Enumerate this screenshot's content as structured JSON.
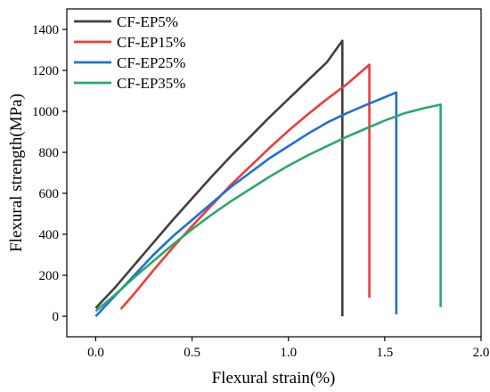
{
  "chart_data": {
    "type": "line",
    "xlabel": "Flexural strain(%)",
    "ylabel": "Flexural strength(MPa)",
    "xlim": [
      -0.15,
      2.0
    ],
    "ylim": [
      -100,
      1500
    ],
    "x_ticks": [
      0.0,
      0.5,
      1.0,
      1.5,
      2.0
    ],
    "x_tick_labels": [
      "0.0",
      "0.5",
      "1.0",
      "1.5",
      "2.0"
    ],
    "y_ticks": [
      0,
      200,
      400,
      600,
      800,
      1000,
      1200,
      1400
    ],
    "y_tick_labels": [
      "0",
      "200",
      "400",
      "600",
      "800",
      "1000",
      "1200",
      "1400"
    ],
    "grid": false,
    "legend_position": "top-left",
    "series": [
      {
        "name": "CF-EP5%",
        "color": "#404040",
        "x": [
          0.0,
          0.1,
          0.2,
          0.3,
          0.4,
          0.5,
          0.6,
          0.7,
          0.8,
          0.9,
          1.0,
          1.1,
          1.2,
          1.28,
          1.28,
          1.28
        ],
        "y": [
          40,
          140,
          250,
          360,
          470,
          575,
          680,
          780,
          875,
          970,
          1060,
          1150,
          1240,
          1345,
          800,
          0
        ]
      },
      {
        "name": "CF-EP15%",
        "color": "#ef3b3b",
        "x": [
          0.13,
          0.2,
          0.3,
          0.4,
          0.5,
          0.6,
          0.7,
          0.8,
          0.9,
          1.0,
          1.1,
          1.2,
          1.3,
          1.42,
          1.42,
          1.42
        ],
        "y": [
          35,
          110,
          225,
          335,
          440,
          540,
          640,
          730,
          820,
          905,
          985,
          1060,
          1130,
          1228,
          340,
          90
        ]
      },
      {
        "name": "CF-EP25%",
        "color": "#1f6fd8",
        "x": [
          0.0,
          0.1,
          0.2,
          0.3,
          0.4,
          0.5,
          0.6,
          0.7,
          0.8,
          0.9,
          1.0,
          1.1,
          1.2,
          1.3,
          1.4,
          1.56,
          1.56
        ],
        "y": [
          0,
          100,
          200,
          300,
          390,
          470,
          550,
          630,
          700,
          770,
          830,
          890,
          945,
          990,
          1030,
          1092,
          10
        ]
      },
      {
        "name": "CF-EP35%",
        "color": "#2aa86a",
        "x": [
          0.0,
          0.1,
          0.2,
          0.3,
          0.4,
          0.5,
          0.6,
          0.7,
          0.8,
          0.9,
          1.0,
          1.1,
          1.2,
          1.3,
          1.4,
          1.5,
          1.6,
          1.7,
          1.79,
          1.79
        ],
        "y": [
          25,
          105,
          190,
          270,
          350,
          425,
          495,
          560,
          620,
          680,
          735,
          785,
          830,
          875,
          915,
          955,
          990,
          1015,
          1033,
          45
        ]
      }
    ]
  }
}
